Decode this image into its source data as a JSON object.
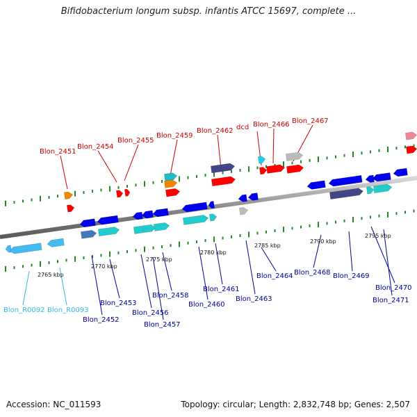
{
  "title": "Bifidobacterium longum subsp. infantis ATCC 15697, complete ...",
  "footer": {
    "accession": "Accession: NC_011593",
    "topology": "Topology: circular; Length: 2,832,748 bp; Genes: 2,507"
  },
  "colors": {
    "top_label": "#cc0000",
    "bottom_label": "#000099",
    "rna_label": "#33bbdd",
    "backbone": "#999999"
  },
  "scale_labels": [
    {
      "label": "2765 kbp"
    },
    {
      "label": "2770 kbp"
    },
    {
      "label": "2775 kbp"
    },
    {
      "label": "2780 kbp"
    },
    {
      "label": "2785 kbp"
    },
    {
      "label": "2790 kbp"
    },
    {
      "label": "2795 kbp"
    }
  ],
  "genes_top": [
    {
      "label": "Blon_2451"
    },
    {
      "label": "Blon_2454"
    },
    {
      "label": "Blon_2455"
    },
    {
      "label": "Blon_2459"
    },
    {
      "label": "Blon_2462"
    },
    {
      "label": "dcd"
    },
    {
      "label": "Blon_2466"
    },
    {
      "label": "Blon_2467"
    }
  ],
  "genes_bottom": [
    {
      "label": "Blon_R0092"
    },
    {
      "label": "Blon_R0093"
    },
    {
      "label": "Blon_2452"
    },
    {
      "label": "Blon_2453"
    },
    {
      "label": "Blon_2456"
    },
    {
      "label": "Blon_2457"
    },
    {
      "label": "Blon_2458"
    },
    {
      "label": "Blon_2460"
    },
    {
      "label": "Blon_2461"
    },
    {
      "label": "Blon_2463"
    },
    {
      "label": "Blon_2464"
    },
    {
      "label": "Blon_2468"
    },
    {
      "label": "Blon_2469"
    },
    {
      "label": "Blon_2470"
    },
    {
      "label": "Blon_2471"
    }
  ]
}
